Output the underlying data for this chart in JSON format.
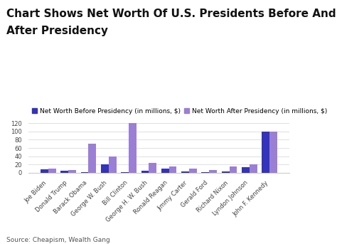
{
  "title_line1": "Chart Shows Net Worth Of U.S. Presidents Before And",
  "title_line2": "After Presidency",
  "presidents": [
    "Joe Biden",
    "Donald Trump",
    "Barack Obama",
    "George W. Bush",
    "Bill Clinton",
    "George H. W. Bush",
    "Ronald Reagan",
    "Jimmy Carter",
    "Gerald Ford",
    "Richard Nixon",
    "Lyndon Johnson",
    "John F. Kennedy"
  ],
  "before": [
    8,
    4,
    2,
    20,
    1,
    4,
    10,
    3,
    2,
    3,
    14,
    100
  ],
  "after": [
    10,
    7,
    70,
    40,
    120,
    23,
    15,
    10,
    7,
    15,
    20,
    100
  ],
  "color_before": "#3333bb",
  "color_after": "#9b7fd4",
  "legend_before": "Net Worth Before Presidency (in millions, $)",
  "legend_after": "Net Worth After Presidency (in millions, $)",
  "ylim_max": 125,
  "yticks": [
    0,
    20,
    40,
    60,
    80,
    100,
    120
  ],
  "source": "Source: Cheapism, Wealth Gang",
  "background_color": "#ffffff",
  "title_fontsize": 11,
  "legend_fontsize": 6.5,
  "tick_fontsize": 6,
  "source_fontsize": 6.5,
  "bar_width": 0.38
}
